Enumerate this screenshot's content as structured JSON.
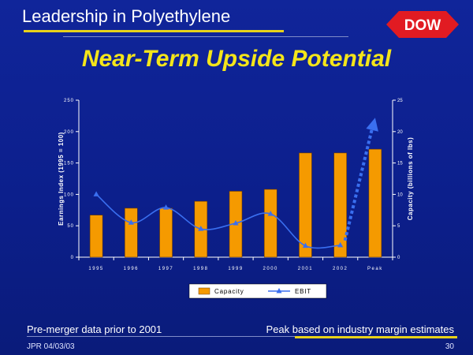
{
  "slide": {
    "header_title": "Leadership in Polyethylene",
    "logo_text": "DOW",
    "title": "Near-Term Upside Potential",
    "footnote_left": "Pre-merger data prior to 2001",
    "footnote_right": "Peak based on industry margin estimates",
    "footer_id": "JPR 04/03/03",
    "page_number": "30"
  },
  "colors": {
    "bar": "#f59a00",
    "ebit": "#3a6ff0",
    "title": "#f4e51a",
    "accent_line": "#e8d21a",
    "logo_red": "#e11b22"
  },
  "chart_data": {
    "type": "bar",
    "categories": [
      "1995",
      "1996",
      "1997",
      "1998",
      "1999",
      "2000",
      "2001",
      "2002",
      "Peak"
    ],
    "series": [
      {
        "name": "Capacity",
        "axis": "right",
        "kind": "bar",
        "values": [
          6.7,
          7.8,
          7.8,
          8.9,
          10.5,
          10.8,
          16.6,
          16.6,
          17.2
        ]
      },
      {
        "name": "EBIT",
        "axis": "left",
        "kind": "line",
        "values": [
          100,
          55,
          79,
          45,
          54,
          69,
          18,
          19,
          null
        ]
      }
    ],
    "projection": {
      "from_category": "2002",
      "to_category": "Peak",
      "from_value": 19,
      "to_value": 222,
      "style": "dotted-arrow"
    },
    "ylabel_left": "Earnings Index (1995 = 100)",
    "ylabel_right": "Capacity (billions of lbs)",
    "ylim_left": [
      0,
      250
    ],
    "ylim_right": [
      0,
      25
    ],
    "yticks_left": [
      "0",
      "50",
      "100",
      "150",
      "200",
      "250"
    ],
    "yticks_right": [
      "0",
      "5",
      "10",
      "15",
      "20",
      "25"
    ],
    "legend": [
      "Capacity",
      "EBIT"
    ],
    "legend_position": "bottom-center",
    "grid": false
  }
}
